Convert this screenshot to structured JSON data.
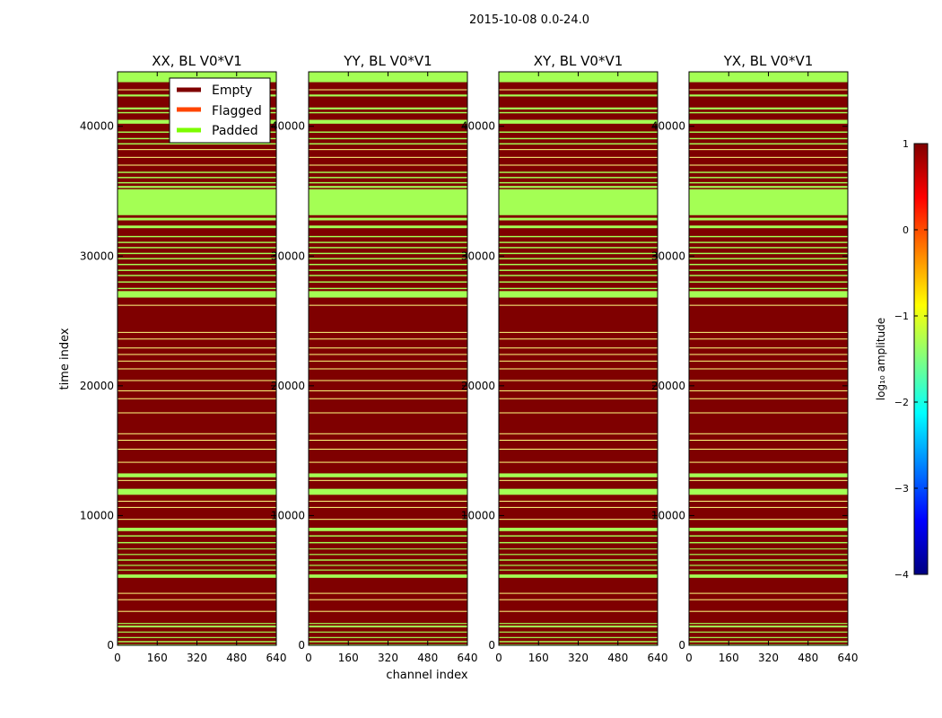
{
  "chart_data": {
    "type": "heatmap",
    "suptitle": "2015-10-08 0.0-24.0",
    "xlabel": "channel index",
    "ylabel": "time index",
    "xlim": [
      0,
      640
    ],
    "ylim": [
      0,
      44200
    ],
    "xticks": [
      0,
      160,
      320,
      480,
      640
    ],
    "yticks": [
      0,
      10000,
      20000,
      30000,
      40000
    ],
    "panels": [
      {
        "title": "XX, BL V0*V1"
      },
      {
        "title": "YY, BL V0*V1"
      },
      {
        "title": "XY, BL V0*V1"
      },
      {
        "title": "YX, BL V0*V1"
      }
    ],
    "legend": {
      "placement": "upper-center",
      "entries": [
        {
          "label": "Empty",
          "color": "#7f0000"
        },
        {
          "label": "Flagged",
          "color": "#ff4500"
        },
        {
          "label": "Padded",
          "color": "#7cfc00"
        }
      ]
    },
    "colorbar": {
      "label": "log₁₀ amplitude",
      "range": [
        -4,
        1
      ],
      "ticks": [
        1,
        0,
        -1,
        -2,
        -3,
        -4
      ],
      "tick_labels": [
        "1",
        "0",
        "−1",
        "−2",
        "−3",
        "−4"
      ],
      "stops": [
        "#000080",
        "#0000ff",
        "#0080ff",
        "#00ffff",
        "#80ff80",
        "#ffff00",
        "#ff8000",
        "#ff0000",
        "#800000"
      ]
    },
    "colors": {
      "empty": "#7f0000",
      "padded": "#a4ff54",
      "line": "#ffff80"
    },
    "padded_rows": [
      [
        0,
        80
      ],
      [
        230,
        330
      ],
      [
        560,
        640
      ],
      [
        980,
        1060
      ],
      [
        1380,
        1520
      ],
      [
        1640,
        1720
      ],
      [
        5200,
        5460
      ],
      [
        5760,
        5840
      ],
      [
        6120,
        6200
      ],
      [
        6520,
        6620
      ],
      [
        6960,
        7040
      ],
      [
        7400,
        7460
      ],
      [
        7860,
        7960
      ],
      [
        8380,
        8480
      ],
      [
        8800,
        9060
      ],
      [
        11600,
        12060
      ],
      [
        12950,
        13250
      ],
      [
        26800,
        27300
      ],
      [
        27450,
        27550
      ],
      [
        27950,
        28050
      ],
      [
        28450,
        28550
      ],
      [
        28850,
        28950
      ],
      [
        29300,
        29400
      ],
      [
        29750,
        29850
      ],
      [
        30150,
        30250
      ],
      [
        30600,
        30700
      ],
      [
        31000,
        31100
      ],
      [
        31450,
        31550
      ],
      [
        32150,
        32350
      ],
      [
        32750,
        32950
      ],
      [
        33150,
        35150
      ],
      [
        35250,
        35400
      ],
      [
        35600,
        35700
      ],
      [
        36000,
        36100
      ],
      [
        36400,
        36500
      ],
      [
        38600,
        38700
      ],
      [
        39000,
        39100
      ],
      [
        39500,
        39600
      ],
      [
        40200,
        40500
      ],
      [
        41000,
        41100
      ],
      [
        41300,
        41450
      ],
      [
        42300,
        42450
      ],
      [
        43400,
        44200
      ]
    ],
    "line_rows": [
      [
        2600,
        2650
      ],
      [
        3500,
        3550
      ],
      [
        4000,
        4040
      ],
      [
        9700,
        9740
      ],
      [
        10600,
        10660
      ],
      [
        11100,
        11140
      ],
      [
        12700,
        12740
      ],
      [
        14100,
        14140
      ],
      [
        15100,
        15150
      ],
      [
        15800,
        15840
      ],
      [
        16300,
        16340
      ],
      [
        17900,
        17950
      ],
      [
        19000,
        19040
      ],
      [
        19600,
        19650
      ],
      [
        20400,
        20440
      ],
      [
        21300,
        21340
      ],
      [
        21900,
        21940
      ],
      [
        22400,
        22450
      ],
      [
        22900,
        22950
      ],
      [
        23600,
        23640
      ],
      [
        24100,
        24150
      ],
      [
        26200,
        26240
      ],
      [
        37000,
        37040
      ],
      [
        37600,
        37640
      ],
      [
        38200,
        38240
      ],
      [
        42800,
        42850
      ]
    ]
  }
}
